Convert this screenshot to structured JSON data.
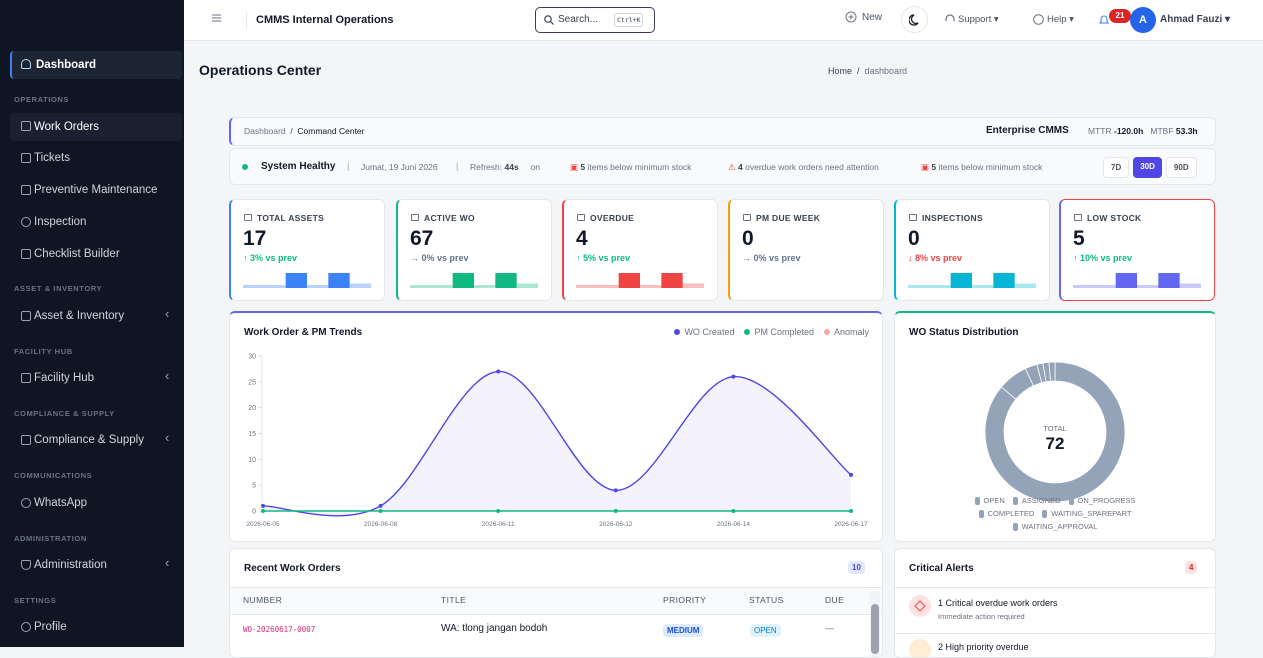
{
  "sidebar": {
    "dashboard": "Dashboard",
    "sections": [
      {
        "title": "OPERATIONS",
        "items": [
          "Work Orders",
          "Tickets",
          "Preventive Maintenance",
          "Inspection",
          "Checklist Builder"
        ]
      },
      {
        "title": "ASSET & INVENTORY",
        "items": [
          "Asset & Inventory"
        ]
      },
      {
        "title": "FACILITY HUB",
        "items": [
          "Facility Hub"
        ]
      },
      {
        "title": "COMPLIANCE & SUPPLY",
        "items": [
          "Compliance & Supply"
        ]
      },
      {
        "title": "COMMUNICATIONS",
        "items": [
          "WhatsApp"
        ]
      },
      {
        "title": "ADMINISTRATION",
        "items": [
          "Administration"
        ]
      },
      {
        "title": "SETTINGS",
        "items": [
          "Profile"
        ]
      }
    ]
  },
  "topbar": {
    "app_name": "CMMS Internal Operations",
    "search": "Search...",
    "shortcut": "Ctrl+K",
    "new": "New",
    "support": "Support",
    "help": "Help",
    "notifications": 21,
    "avatar": "A",
    "user": "Ahmad Fauzi"
  },
  "page": {
    "title": "Operations Center",
    "breadcrumb": [
      "Home",
      "dashboard"
    ]
  },
  "command_bar": {
    "breadcrumb": [
      "Dashboard",
      "Command Center"
    ],
    "label": "Enterprise CMMS",
    "mttr_label": "MTTR",
    "mttr": "-120.0h",
    "mtbf_label": "MTBF",
    "mtbf": "53.3h"
  },
  "status_bar": {
    "status": "System Healthy",
    "date": "Jumat, 19 Juni 2026",
    "refresh_label": "Refresh:",
    "refresh": "44s",
    "toggle": "on",
    "alerts": [
      {
        "count": 5,
        "text": "items below minimum stock"
      },
      {
        "count": 4,
        "text": "overdue work orders need attention"
      },
      {
        "count": 5,
        "text": "items below minimum stock"
      }
    ],
    "ranges": [
      "7D",
      "30D",
      "90D"
    ],
    "active_range": "30D"
  },
  "kpis": [
    {
      "label": "TOTAL ASSETS",
      "value": 17,
      "change": "↑ 3% vs prev",
      "color": "#3b82f6",
      "change_color": "#10b981",
      "spark": [
        1,
        1,
        5,
        1,
        5,
        1.5
      ]
    },
    {
      "label": "ACTIVE WO",
      "value": 67,
      "change": "→ 0% vs prev",
      "color": "#10b981",
      "change_color": "#64748b",
      "spark": [
        1,
        1,
        5,
        1,
        5,
        1.5
      ]
    },
    {
      "label": "OVERDUE",
      "value": 4,
      "change": "↑ 5% vs prev",
      "color": "#ef4444",
      "change_color": "#10b981",
      "spark": [
        1,
        1,
        5,
        1,
        5,
        1.5
      ]
    },
    {
      "label": "PM DUE WEEK",
      "value": 0,
      "change": "→ 0% vs prev",
      "color": "#f59e0b",
      "change_color": "#64748b",
      "spark": []
    },
    {
      "label": "INSPECTIONS",
      "value": 0,
      "change": "↓ 8% vs prev",
      "color": "#06b6d4",
      "change_color": "#ef4444",
      "spark": [
        1,
        1,
        5,
        1,
        5,
        1.5
      ]
    },
    {
      "label": "LOW STOCK",
      "value": 5,
      "change": "↑ 10% vs prev",
      "color": "#6366f1",
      "change_color": "#10b981",
      "spark": [
        1,
        1,
        5,
        1,
        5,
        1.5
      ]
    }
  ],
  "chart_data": [
    {
      "type": "line",
      "title": "Work Order & PM Trends",
      "categories": [
        "2026-06-05",
        "2026-06-08",
        "2026-06-11",
        "2026-06-12",
        "2026-06-14",
        "2026-06-17"
      ],
      "series": [
        {
          "name": "WO Created",
          "color": "#4f46e5",
          "values": [
            1,
            1,
            27,
            4,
            26,
            7
          ]
        },
        {
          "name": "PM Completed",
          "color": "#10b981",
          "values": [
            0,
            0,
            0,
            0,
            0,
            0
          ]
        },
        {
          "name": "Anomaly",
          "color": "#fca5a5"
        }
      ],
      "ylim": [
        0,
        30
      ],
      "yticks": [
        0,
        5,
        10,
        15,
        20,
        25,
        30
      ]
    },
    {
      "type": "donut",
      "title": "WO Status Distribution",
      "total_label": "TOTAL",
      "total": 72,
      "color": "#94a3b8",
      "categories": [
        "OPEN",
        "ASSIGNED",
        "ON_PROGRESS",
        "COMPLETED",
        "WAITING_SPAREPART",
        "WAITING_APPROVAL"
      ],
      "values": [
        62,
        5,
        2,
        1,
        1,
        1
      ]
    }
  ],
  "recent_work_orders": {
    "title": "Recent Work Orders",
    "count": 10,
    "columns": [
      "NUMBER",
      "TITLE",
      "PRIORITY",
      "STATUS",
      "DUE"
    ],
    "rows": [
      [
        "WO-20260617-0007",
        "WA: tlong jangan bodoh",
        "MEDIUM",
        "OPEN",
        "—"
      ]
    ]
  },
  "critical_alerts": {
    "title": "Critical Alerts",
    "count": 4,
    "items": [
      {
        "title": "1 Critical overdue work orders",
        "subtitle": "Immediate action required"
      },
      {
        "title": "2 High priority overdue"
      }
    ]
  }
}
